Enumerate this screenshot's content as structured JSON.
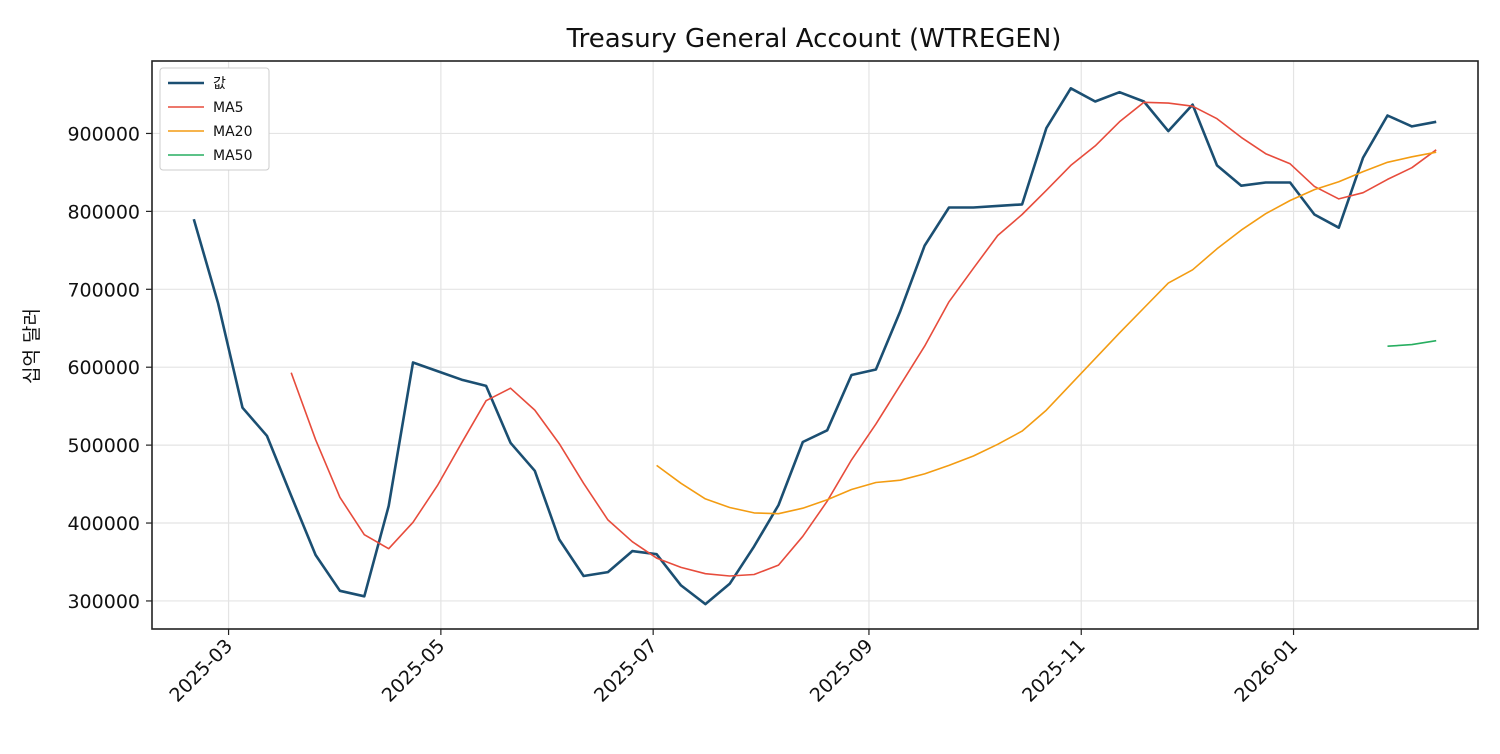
{
  "chart_data": {
    "type": "line",
    "title": "Treasury General Account (WTREGEN)",
    "xlabel": "",
    "ylabel": "십억 달러",
    "x_tick_labels": [
      "2025-03",
      "2025-05",
      "2025-07",
      "2025-09",
      "2025-11",
      "2026-01"
    ],
    "x_ticks": [
      "2025-03-01",
      "2025-05-01",
      "2025-07-01",
      "2025-09-01",
      "2025-11-01",
      "2026-01-01"
    ],
    "y_ticks": [
      300000,
      400000,
      500000,
      600000,
      700000,
      800000,
      900000
    ],
    "y_tick_labels": [
      "300000",
      "400000",
      "500000",
      "600000",
      "700000",
      "800000",
      "900000"
    ],
    "xlim": [
      "2025-02-07",
      "2026-02-23"
    ],
    "ylim": [
      264000,
      993000
    ],
    "grid": true,
    "legend_position": "top-left",
    "x": [
      "2025-02-19",
      "2025-02-26",
      "2025-03-05",
      "2025-03-12",
      "2025-03-19",
      "2025-03-26",
      "2025-04-02",
      "2025-04-09",
      "2025-04-16",
      "2025-04-23",
      "2025-04-30",
      "2025-05-07",
      "2025-05-14",
      "2025-05-21",
      "2025-05-28",
      "2025-06-04",
      "2025-06-11",
      "2025-06-18",
      "2025-06-25",
      "2025-07-02",
      "2025-07-09",
      "2025-07-16",
      "2025-07-23",
      "2025-07-30",
      "2025-08-06",
      "2025-08-13",
      "2025-08-20",
      "2025-08-27",
      "2025-09-03",
      "2025-09-10",
      "2025-09-17",
      "2025-09-24",
      "2025-10-01",
      "2025-10-08",
      "2025-10-15",
      "2025-10-22",
      "2025-10-29",
      "2025-11-05",
      "2025-11-12",
      "2025-11-19",
      "2025-11-26",
      "2025-12-03",
      "2025-12-10",
      "2025-12-17",
      "2025-12-24",
      "2025-12-31",
      "2026-01-07",
      "2026-01-14",
      "2026-01-21",
      "2026-01-28",
      "2026-02-04",
      "2026-02-11"
    ],
    "series": [
      {
        "name": "값",
        "color": "#1b4f72",
        "width": 2.6,
        "values": [
          790000,
          682000,
          548000,
          512000,
          435000,
          359000,
          313000,
          306000,
          422000,
          606000,
          595000,
          584000,
          576000,
          503000,
          467000,
          379000,
          332000,
          337000,
          364000,
          360000,
          320000,
          296000,
          322000,
          370000,
          423000,
          504000,
          519000,
          590000,
          597000,
          672000,
          756000,
          805000,
          805000,
          807000,
          809000,
          907000,
          958000,
          941000,
          953000,
          941000,
          903000,
          937000,
          859000,
          833000,
          837000,
          837000,
          796000,
          779000,
          869000,
          923000,
          909000,
          915000
        ]
      },
      {
        "name": "MA5",
        "color": "#e74c3c",
        "width": 1.6,
        "values": [
          null,
          null,
          null,
          null,
          593000,
          507000,
          433000,
          385000,
          367000,
          401000,
          448000,
          503000,
          557000,
          573000,
          545000,
          502000,
          451000,
          404000,
          376000,
          355000,
          343000,
          335000,
          332000,
          334000,
          346000,
          383000,
          428000,
          481000,
          527000,
          577000,
          627000,
          684000,
          727000,
          769000,
          796000,
          827000,
          859000,
          884000,
          915000,
          940000,
          939000,
          935000,
          919000,
          895000,
          874000,
          861000,
          832000,
          816000,
          824000,
          841000,
          856000,
          879000
        ]
      },
      {
        "name": "MA20",
        "color": "#f39c12",
        "width": 1.6,
        "values": [
          null,
          null,
          null,
          null,
          null,
          null,
          null,
          null,
          null,
          null,
          null,
          null,
          null,
          null,
          null,
          null,
          null,
          null,
          null,
          474000,
          451000,
          431000,
          420000,
          413000,
          412000,
          419000,
          430000,
          443000,
          452000,
          455000,
          463000,
          474000,
          486000,
          501000,
          518000,
          545000,
          578000,
          611000,
          644000,
          676000,
          708000,
          725000,
          752000,
          776000,
          797000,
          814000,
          828000,
          838000,
          851000,
          863000,
          870000,
          876000
        ]
      },
      {
        "name": "MA50",
        "color": "#27ae60",
        "width": 1.6,
        "values": [
          null,
          null,
          null,
          null,
          null,
          null,
          null,
          null,
          null,
          null,
          null,
          null,
          null,
          null,
          null,
          null,
          null,
          null,
          null,
          null,
          null,
          null,
          null,
          null,
          null,
          null,
          null,
          null,
          null,
          null,
          null,
          null,
          null,
          null,
          null,
          null,
          null,
          null,
          null,
          null,
          null,
          null,
          null,
          null,
          null,
          null,
          null,
          null,
          null,
          627000,
          629000,
          634000
        ]
      }
    ]
  }
}
